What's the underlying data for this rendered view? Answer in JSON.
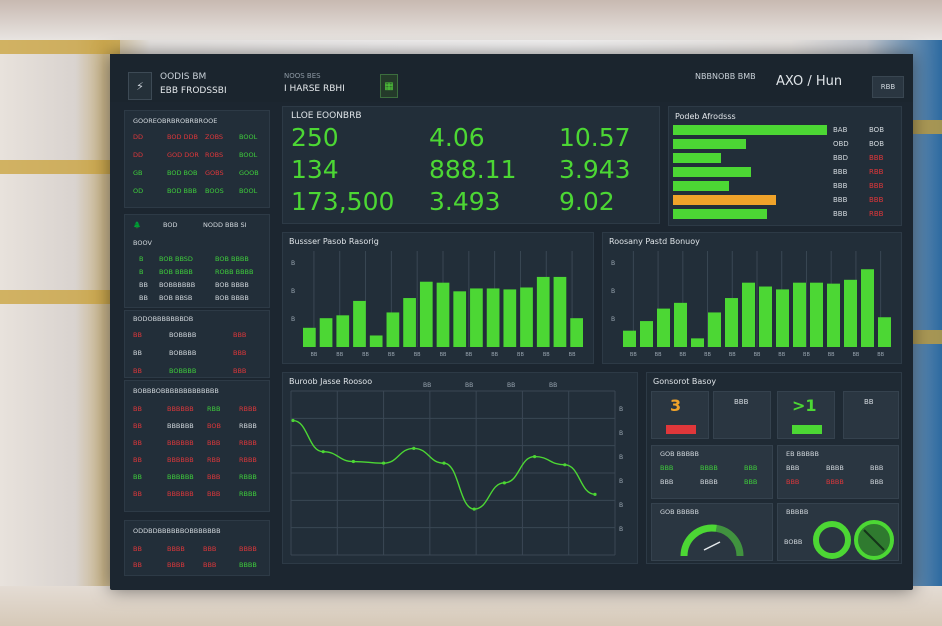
{
  "topbar": {
    "title_line1": "OODIS BM",
    "title_line2": "EBB FRODSSBI",
    "mid_line1": "NOOS BES",
    "mid_line2": "I HARSE RBHI",
    "right_label": "NBBNOBB BMB",
    "right_value": "AXO / Hun",
    "right_button": "RBB"
  },
  "left_panel_1": {
    "header": [
      "GOOR",
      "EOBRB",
      "ROBRB",
      "ROOE"
    ],
    "rows": [
      {
        "cols": [
          "DD",
          "BOD DDB",
          "ZOBS",
          "BOOL"
        ],
        "colors": [
          "r",
          "r",
          "r",
          "g"
        ]
      },
      {
        "cols": [
          "DD",
          "GOD DOR",
          "ROBS",
          "BOOL"
        ],
        "colors": [
          "r",
          "r",
          "r",
          "g"
        ]
      },
      {
        "cols": [
          "GB",
          "BOD BOB",
          "GOBS",
          "GOOB"
        ],
        "colors": [
          "g",
          "g",
          "r",
          "g"
        ]
      },
      {
        "cols": [
          "OD",
          "BOD BBB",
          "BOOS",
          "BOOL"
        ],
        "colors": [
          "g",
          "g",
          "g",
          "g"
        ]
      }
    ]
  },
  "left_panel_2": {
    "header_icon": "tree-icon",
    "header": [
      "BOD",
      "NODD BBB SI"
    ],
    "sub": "BOOV",
    "rows": [
      {
        "cols": [
          "B",
          "BOB BBSD",
          "BOB BBBB"
        ],
        "colors": [
          "g",
          "g",
          "g"
        ]
      },
      {
        "cols": [
          "B",
          "BOB BBBB",
          "ROBB BBBB"
        ],
        "colors": [
          "g",
          "g",
          "g"
        ]
      },
      {
        "cols": [
          "BB",
          "BOBBBBBB",
          "BOB BBBB"
        ],
        "colors": [
          "w",
          "w",
          "w"
        ]
      },
      {
        "cols": [
          "BB",
          "BOB BBSB",
          "BOB BBBB"
        ],
        "colors": [
          "w",
          "w",
          "w"
        ]
      }
    ]
  },
  "left_panel_3": {
    "header": [
      "BODOBBBBBB",
      "BDB"
    ],
    "rows": [
      {
        "cols": [
          "BB",
          "BOBBBB",
          "BBB"
        ],
        "colors": [
          "r",
          "w",
          "r"
        ]
      },
      {
        "cols": [
          "BB",
          "BOBBBB",
          "BBB"
        ],
        "colors": [
          "w",
          "w",
          "r"
        ]
      },
      {
        "cols": [
          "BB",
          "BOBBBB",
          "BBB"
        ],
        "colors": [
          "r",
          "g",
          "r"
        ]
      }
    ]
  },
  "left_panel_4": {
    "header": [
      "BOBB",
      "BOBBBB",
      "BBBBB",
      "BBBB"
    ],
    "rows": [
      {
        "cols": [
          "BB",
          "BBBBBB",
          "RBB",
          "RBBB"
        ],
        "colors": [
          "r",
          "r",
          "g",
          "r"
        ]
      },
      {
        "cols": [
          "BB",
          "BBBBBB",
          "BOB",
          "RBBB"
        ],
        "colors": [
          "r",
          "w",
          "r",
          "w"
        ]
      },
      {
        "cols": [
          "BB",
          "BBBBBB",
          "BBB",
          "RBBB"
        ],
        "colors": [
          "r",
          "r",
          "r",
          "r"
        ]
      },
      {
        "cols": [
          "BB",
          "BBBBBB",
          "RBB",
          "RBBB"
        ],
        "colors": [
          "r",
          "r",
          "r",
          "r"
        ]
      },
      {
        "cols": [
          "BB",
          "BBBBBB",
          "BBB",
          "RBBB"
        ],
        "colors": [
          "g",
          "g",
          "r",
          "g"
        ]
      },
      {
        "cols": [
          "BB",
          "BBBBBB",
          "BBB",
          "RBBB"
        ],
        "colors": [
          "r",
          "r",
          "r",
          "g"
        ]
      }
    ]
  },
  "left_panel_5": {
    "header": [
      "ODDBDBBBBB",
      "BOBB",
      "BBBBB"
    ],
    "rows": [
      {
        "cols": [
          "BB",
          "BBBB",
          "BBB",
          "BBBB"
        ],
        "colors": [
          "r",
          "r",
          "r",
          "r"
        ]
      },
      {
        "cols": [
          "BB",
          "BBBB",
          "BBB",
          "BBBB"
        ],
        "colors": [
          "r",
          "r",
          "r",
          "g"
        ]
      }
    ]
  },
  "kpi_panel": {
    "label": "LLOE EOONBRB",
    "values": [
      [
        "250",
        "4.06",
        "10.57"
      ],
      [
        "134",
        "888.11",
        "3.943"
      ],
      [
        "173,500",
        "3.493",
        "9.02"
      ]
    ]
  },
  "hbar_panel": {
    "title": "Podeb Afrodsss",
    "bars": [
      {
        "fraction": 0.99,
        "color": "#4cd734",
        "label": "BAB",
        "value": "BOB",
        "value_color": "#d3d9de"
      },
      {
        "fraction": 0.47,
        "color": "#4cd734",
        "label": "OBD",
        "value": "BOB",
        "value_color": "#d3d9de"
      },
      {
        "fraction": 0.31,
        "color": "#4cd734",
        "label": "BBD",
        "value": "BBB",
        "value_color": "#e0373a"
      },
      {
        "fraction": 0.5,
        "color": "#4cd734",
        "label": "BBB",
        "value": "RBB",
        "value_color": "#e0373a"
      },
      {
        "fraction": 0.36,
        "color": "#4cd734",
        "label": "BBB",
        "value": "BBB",
        "value_color": "#e0373a"
      },
      {
        "fraction": 0.66,
        "color": "#f0a32a",
        "label": "BBB",
        "value": "BBB",
        "value_color": "#e0373a"
      },
      {
        "fraction": 0.6,
        "color": "#4cd734",
        "label": "BBB",
        "value": "RBB",
        "value_color": "#e0373a"
      }
    ]
  },
  "bar_chart_left": {
    "title": "Bussser Pasob Rasorig",
    "ytick_labels": [
      "B",
      "B",
      "B"
    ],
    "values": [
      0.2,
      0.3,
      0.33,
      0.48,
      0.12,
      0.36,
      0.51,
      0.68,
      0.67,
      0.58,
      0.61,
      0.61,
      0.6,
      0.62,
      0.73,
      0.73,
      0.3
    ],
    "xtick_labels": [
      "BB",
      "BB",
      "BB",
      "BB",
      "BB",
      "BB",
      "BB",
      "BB",
      "BB",
      "BB",
      "BB"
    ]
  },
  "bar_chart_right": {
    "title": "Roosany Pastd Bonuoy",
    "ytick_labels": [
      "B",
      "B",
      "B"
    ],
    "values": [
      0.17,
      0.27,
      0.4,
      0.46,
      0.09,
      0.36,
      0.51,
      0.67,
      0.63,
      0.6,
      0.67,
      0.67,
      0.66,
      0.7,
      0.81,
      0.31
    ],
    "xtick_labels": [
      "BB",
      "BB",
      "BB",
      "BB",
      "BB",
      "BB",
      "BB",
      "BB",
      "BB",
      "BB",
      "BB"
    ]
  },
  "line_chart": {
    "title": "Buroob Jasse Roosoo",
    "top_ticks": [
      "BB",
      "BB",
      "BB",
      "BB"
    ],
    "ytick_labels": [
      "B",
      "B",
      "B",
      "B",
      "B",
      "B"
    ],
    "points": [
      0.18,
      0.37,
      0.43,
      0.44,
      0.35,
      0.44,
      0.72,
      0.56,
      0.4,
      0.45,
      0.63
    ],
    "line_color": "#4cd734"
  },
  "cards_panel": {
    "title": "Gonsorot Basoy",
    "card1_value": "3",
    "card1_color": "#f0a32a",
    "card1_bar_color": "#e0373a",
    "card2_text": "BBB",
    "card3_value": ">1",
    "card3_color": "#4cd734",
    "card4_text": "BB",
    "table1_header": "GOB BBBBB",
    "table1_rows": [
      {
        "a": "BBB",
        "b": "BBBB",
        "c": "BBB",
        "ca": "g",
        "cb": "g",
        "cc": "g"
      },
      {
        "a": "BBB",
        "b": "BBBB",
        "c": "BBB",
        "ca": "w",
        "cb": "w",
        "cc": "g"
      }
    ],
    "table2_header": "EB BBBBB",
    "table2_rows": [
      {
        "a": "BBB",
        "b": "BBBB",
        "c": "BBB",
        "ca": "w",
        "cb": "w",
        "cc": "w"
      },
      {
        "a": "BBB",
        "b": "BBBB",
        "c": "BBB",
        "ca": "r",
        "cb": "r",
        "cc": "w"
      }
    ],
    "gauge_title": "GOB BBBBB",
    "gauge_fraction": 0.55,
    "donut_title": "BBBBB",
    "donut_side_label": "BOBB"
  }
}
